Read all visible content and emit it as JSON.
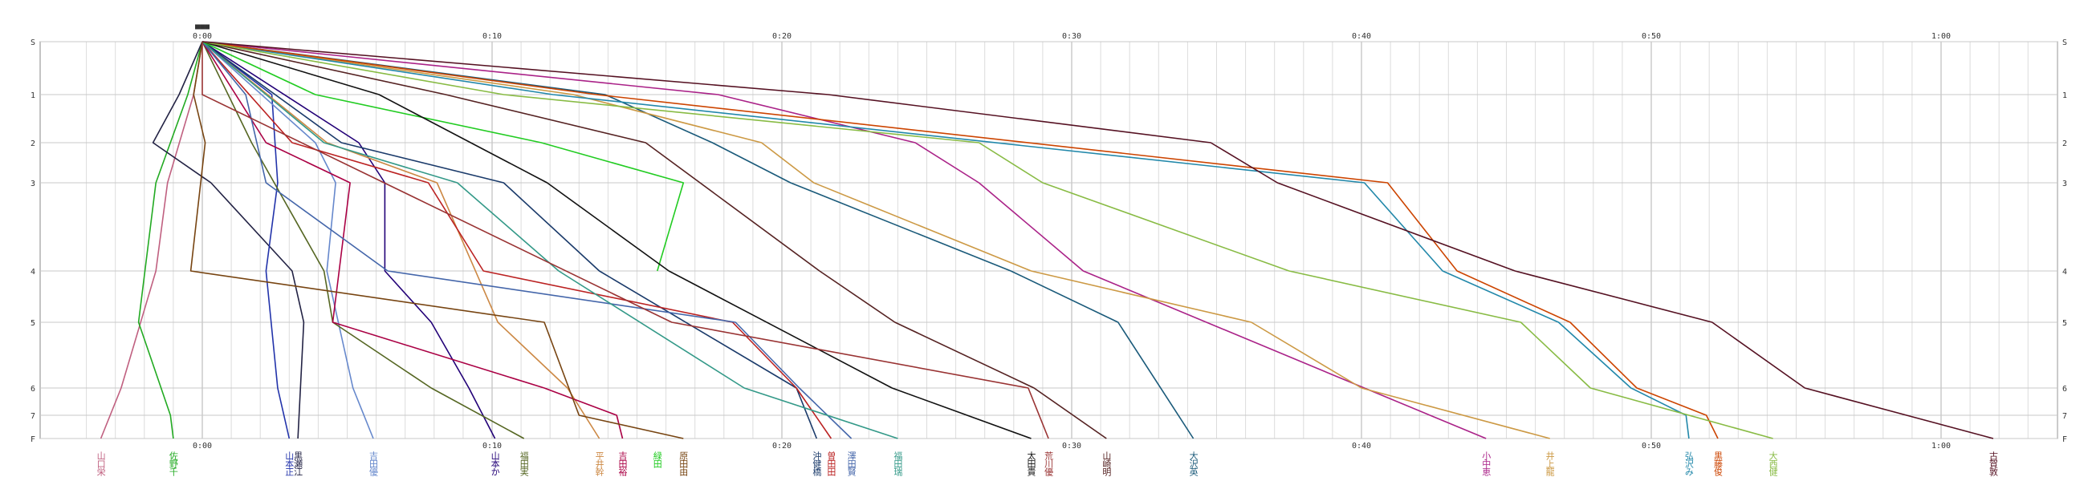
{
  "chart_data": {
    "type": "line",
    "title": "",
    "xlabel": "",
    "ylabel": "",
    "xlim": [
      -4.3,
      64.5
    ],
    "ylim": [
      0,
      8
    ],
    "grid": true,
    "legend": "bottom",
    "start_marker": "■■■",
    "x_ticks": [
      {
        "value": 0,
        "label": "0:00"
      },
      {
        "value": 10,
        "label": "0:10"
      },
      {
        "value": 20,
        "label": "0:20"
      },
      {
        "value": 30,
        "label": "0:30"
      },
      {
        "value": 40,
        "label": "0:40"
      },
      {
        "value": 50,
        "label": "0:50"
      },
      {
        "value": 60,
        "label": "1:00"
      }
    ],
    "y_ticks": [
      {
        "value": 0,
        "label": "S"
      },
      {
        "value": 1,
        "label": "1"
      },
      {
        "value": 2,
        "label": "2"
      },
      {
        "value": 3,
        "label": "3"
      },
      {
        "value": 4,
        "label": "4"
      },
      {
        "value": 5,
        "label": "5"
      },
      {
        "value": 6,
        "label": "6"
      },
      {
        "value": 7,
        "label": "7"
      },
      {
        "value": 8,
        "label": "F"
      }
    ],
    "series": [
      {
        "name": "山口栄",
        "color": "#c06080",
        "x": [
          0,
          -0.3,
          -1.2,
          -1.6,
          -2.8,
          -3.5
        ],
        "y": [
          0,
          1,
          3,
          4,
          6,
          8
        ]
      },
      {
        "name": "佐野千",
        "color": "#22aa22",
        "x": [
          0,
          -0.5,
          -1.6,
          -2.2,
          -1.1,
          -1.0
        ],
        "y": [
          0,
          1,
          3,
          5,
          7,
          8
        ]
      },
      {
        "name": "黒瀬江",
        "color": "#222244",
        "x": [
          0,
          -0.8,
          -1.7,
          0.3,
          3.1,
          3.5,
          3.3
        ],
        "y": [
          0,
          1,
          2,
          3,
          4,
          5,
          8
        ]
      },
      {
        "name": "山本正",
        "color": "#2233aa",
        "x": [
          0,
          2.4,
          2.6,
          2.2,
          2.6,
          3.0
        ],
        "y": [
          0,
          1,
          3,
          4,
          6,
          8
        ]
      },
      {
        "name": "吉田優",
        "color": "#6688cc",
        "x": [
          0,
          3.9,
          4.6,
          4.3,
          5.2,
          5.9
        ],
        "y": [
          0,
          2,
          3,
          4,
          6,
          8
        ]
      },
      {
        "name": "山本か",
        "color": "#220077",
        "x": [
          0,
          5.4,
          6.3,
          6.3,
          7.9,
          9.2,
          10.1
        ],
        "y": [
          0,
          2,
          3,
          4,
          5,
          6,
          8
        ]
      },
      {
        "name": "福田実",
        "color": "#556622",
        "x": [
          0,
          1.7,
          4.2,
          4.5,
          7.9,
          11.1
        ],
        "y": [
          0,
          2,
          4,
          5,
          6,
          8
        ]
      },
      {
        "name": "平井幹",
        "color": "#cc8844",
        "x": [
          0,
          4.3,
          8.1,
          10.2,
          12.6,
          13.7
        ],
        "y": [
          0,
          2,
          3,
          5,
          6,
          8
        ]
      },
      {
        "name": "吉田裕",
        "color": "#aa0044",
        "x": [
          0,
          2.2,
          5.1,
          4.5,
          11.8,
          14.3,
          14.5
        ],
        "y": [
          0,
          2,
          3,
          5,
          6,
          7,
          8
        ]
      },
      {
        "name": "原田由",
        "color": "#774411",
        "x": [
          0,
          -0.3,
          0.1,
          -0.4,
          11.8,
          13.0,
          16.6
        ],
        "y": [
          0,
          1,
          2,
          4,
          5,
          7,
          8
        ]
      },
      {
        "name": "沖健橋",
        "color": "#1a3a6a",
        "x": [
          0,
          4.8,
          10.4,
          13.7,
          20.5,
          21.2
        ],
        "y": [
          0,
          2,
          3,
          4,
          6,
          8
        ]
      },
      {
        "name": "曽田田",
        "color": "#bb2222",
        "x": [
          0,
          3.1,
          7.8,
          9.7,
          18.3,
          20.5,
          21.7
        ],
        "y": [
          0,
          2,
          3,
          4,
          5,
          6,
          8
        ]
      },
      {
        "name": "澤田賢",
        "color": "#4466aa",
        "x": [
          0,
          1.5,
          2.2,
          6.4,
          18.4,
          20.6,
          22.4
        ],
        "y": [
          0,
          1,
          3,
          4,
          5,
          6,
          8
        ]
      },
      {
        "name": "福田瑞",
        "color": "#339988",
        "x": [
          0,
          4.2,
          8.8,
          12.3,
          18.7,
          24.0
        ],
        "y": [
          0,
          2,
          3,
          4,
          6,
          8
        ]
      },
      {
        "name": "緑田",
        "color": "#22cc22",
        "x": [
          0,
          3.9,
          11.7,
          16.6,
          15.7
        ],
        "y": [
          0,
          1,
          2,
          3,
          4
        ]
      },
      {
        "name": "太田貴",
        "color": "#111111",
        "x": [
          0,
          6.1,
          11.9,
          16.1,
          23.8,
          28.6
        ],
        "y": [
          0,
          1,
          3,
          4,
          6,
          8
        ]
      },
      {
        "name": "荒川優",
        "color": "#993333",
        "x": [
          0,
          0.0,
          16.2,
          28.5,
          29.2
        ],
        "y": [
          0,
          1,
          5,
          6,
          8
        ]
      },
      {
        "name": "山崎明",
        "color": "#552222",
        "x": [
          0,
          8.4,
          15.3,
          21.3,
          23.9,
          28.7,
          31.2
        ],
        "y": [
          0,
          1,
          2,
          4,
          5,
          6,
          8
        ]
      },
      {
        "name": "大沢英",
        "color": "#1a5a7a",
        "x": [
          0,
          13.9,
          17.6,
          20.3,
          27.9,
          31.6,
          34.2
        ],
        "y": [
          0,
          1,
          2,
          3,
          4,
          5,
          8
        ]
      },
      {
        "name": "小中恵",
        "color": "#aa2288",
        "x": [
          0,
          17.8,
          24.6,
          26.8,
          30.4,
          40.1,
          44.3
        ],
        "y": [
          0,
          1,
          2,
          3,
          4,
          6,
          8
        ]
      },
      {
        "name": "井上龍",
        "color": "#cc9944",
        "x": [
          0,
          12.8,
          19.3,
          21.1,
          28.6,
          36.2,
          40.0,
          46.5
        ],
        "y": [
          0,
          1,
          2,
          3,
          4,
          5,
          6,
          8
        ]
      },
      {
        "name": "弘沢み",
        "color": "#2288aa",
        "x": [
          0,
          12.1,
          40.1,
          42.8,
          46.8,
          49.3,
          51.2,
          51.3
        ],
        "y": [
          0,
          1,
          3,
          4,
          5,
          6,
          7,
          8
        ]
      },
      {
        "name": "黒藤俊",
        "color": "#cc4400",
        "x": [
          0,
          13.6,
          40.9,
          43.3,
          47.2,
          49.5,
          51.9,
          52.3
        ],
        "y": [
          0,
          1,
          3,
          4,
          5,
          6,
          7,
          8
        ]
      },
      {
        "name": "大西健",
        "color": "#88bb44",
        "x": [
          0,
          10.4,
          26.8,
          29.0,
          37.5,
          45.5,
          47.9,
          54.2
        ],
        "y": [
          0,
          1,
          2,
          3,
          4,
          5,
          6,
          8
        ]
      },
      {
        "name": "古賀敦",
        "color": "#551122",
        "x": [
          0,
          21.6,
          34.8,
          37.1,
          45.3,
          52.1,
          55.3,
          61.8
        ],
        "y": [
          0,
          1,
          2,
          3,
          4,
          5,
          6,
          8
        ]
      }
    ]
  }
}
